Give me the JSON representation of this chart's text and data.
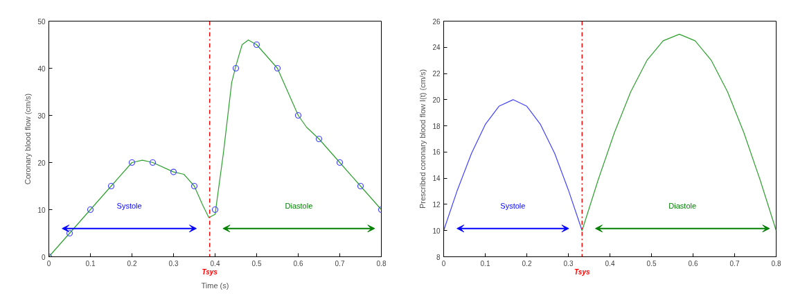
{
  "chart_data": [
    {
      "type": "line",
      "xlabel": "Time (s)",
      "ylabel": "Coronary blood flow (cm/s)",
      "xlim": [
        0,
        0.8
      ],
      "ylim": [
        0,
        50
      ],
      "xticks": [
        0,
        0.1,
        0.2,
        0.3,
        0.4,
        0.5,
        0.6,
        0.7,
        0.8
      ],
      "yticks": [
        0,
        10,
        20,
        30,
        40,
        50
      ],
      "grid": false,
      "series": [
        {
          "color": "#2ca02c",
          "marker": "none",
          "x": [
            0,
            0.05,
            0.1,
            0.15,
            0.2,
            0.225,
            0.25,
            0.3,
            0.325,
            0.35,
            0.37,
            0.385,
            0.4,
            0.42,
            0.44,
            0.45,
            0.465,
            0.48,
            0.5,
            0.55,
            0.575,
            0.6,
            0.62,
            0.65,
            0.7,
            0.75,
            0.8
          ],
          "values": [
            0,
            5,
            10,
            15,
            20,
            20.5,
            20,
            18,
            17.5,
            15,
            11,
            8.3,
            9,
            22,
            37,
            40.5,
            45,
            46,
            45,
            40,
            35,
            30,
            27.5,
            25,
            20,
            15,
            10
          ]
        },
        {
          "type": "scatter",
          "color": "#4040ff",
          "marker": "circle",
          "x": [
            0,
            0.05,
            0.1,
            0.15,
            0.2,
            0.25,
            0.3,
            0.35,
            0.4,
            0.45,
            0.5,
            0.55,
            0.6,
            0.65,
            0.7,
            0.75,
            0.8
          ],
          "values": [
            0,
            5,
            10,
            15,
            20,
            20,
            18,
            15,
            10,
            40,
            45,
            40,
            30,
            25,
            20,
            15,
            10
          ]
        }
      ],
      "ref_lines": [
        {
          "axis": "x",
          "value": 0.387,
          "label": "Tsys",
          "color": "#ff0000",
          "line_style": "dashdot"
        }
      ],
      "annotations": [
        "Systole",
        "Diastole"
      ]
    },
    {
      "type": "line",
      "ylabel": "Prescribed coronary blood flow I(t) (cm/s)",
      "xlim": [
        0,
        0.8
      ],
      "ylim": [
        8,
        26
      ],
      "xticks": [
        0,
        0.1,
        0.2,
        0.3,
        0.4,
        0.5,
        0.6,
        0.7,
        0.8
      ],
      "yticks": [
        8,
        10,
        12,
        14,
        16,
        18,
        20,
        22,
        24,
        26
      ],
      "grid": false,
      "series": [
        {
          "color": "#4040ff",
          "marker": "none",
          "x": [
            0,
            0.033,
            0.067,
            0.1,
            0.133,
            0.167,
            0.2,
            0.233,
            0.267,
            0.3,
            0.333
          ],
          "values": [
            10,
            13.1,
            15.9,
            18.1,
            19.5,
            20,
            19.5,
            18.1,
            15.9,
            13.1,
            10
          ]
        },
        {
          "color": "#2ca02c",
          "marker": "none",
          "x": [
            0.333,
            0.372,
            0.411,
            0.45,
            0.489,
            0.528,
            0.567,
            0.605,
            0.644,
            0.683,
            0.722,
            0.761,
            0.8
          ],
          "values": [
            10,
            13.9,
            17.5,
            20.6,
            23,
            24.5,
            25,
            24.5,
            23,
            20.6,
            17.5,
            13.9,
            10
          ]
        }
      ],
      "ref_lines": [
        {
          "axis": "x",
          "value": 0.333,
          "label": "Tsys",
          "color": "#ff0000",
          "line_style": "dashdot"
        }
      ],
      "annotations": [
        "Systole",
        "Diastole"
      ]
    }
  ]
}
